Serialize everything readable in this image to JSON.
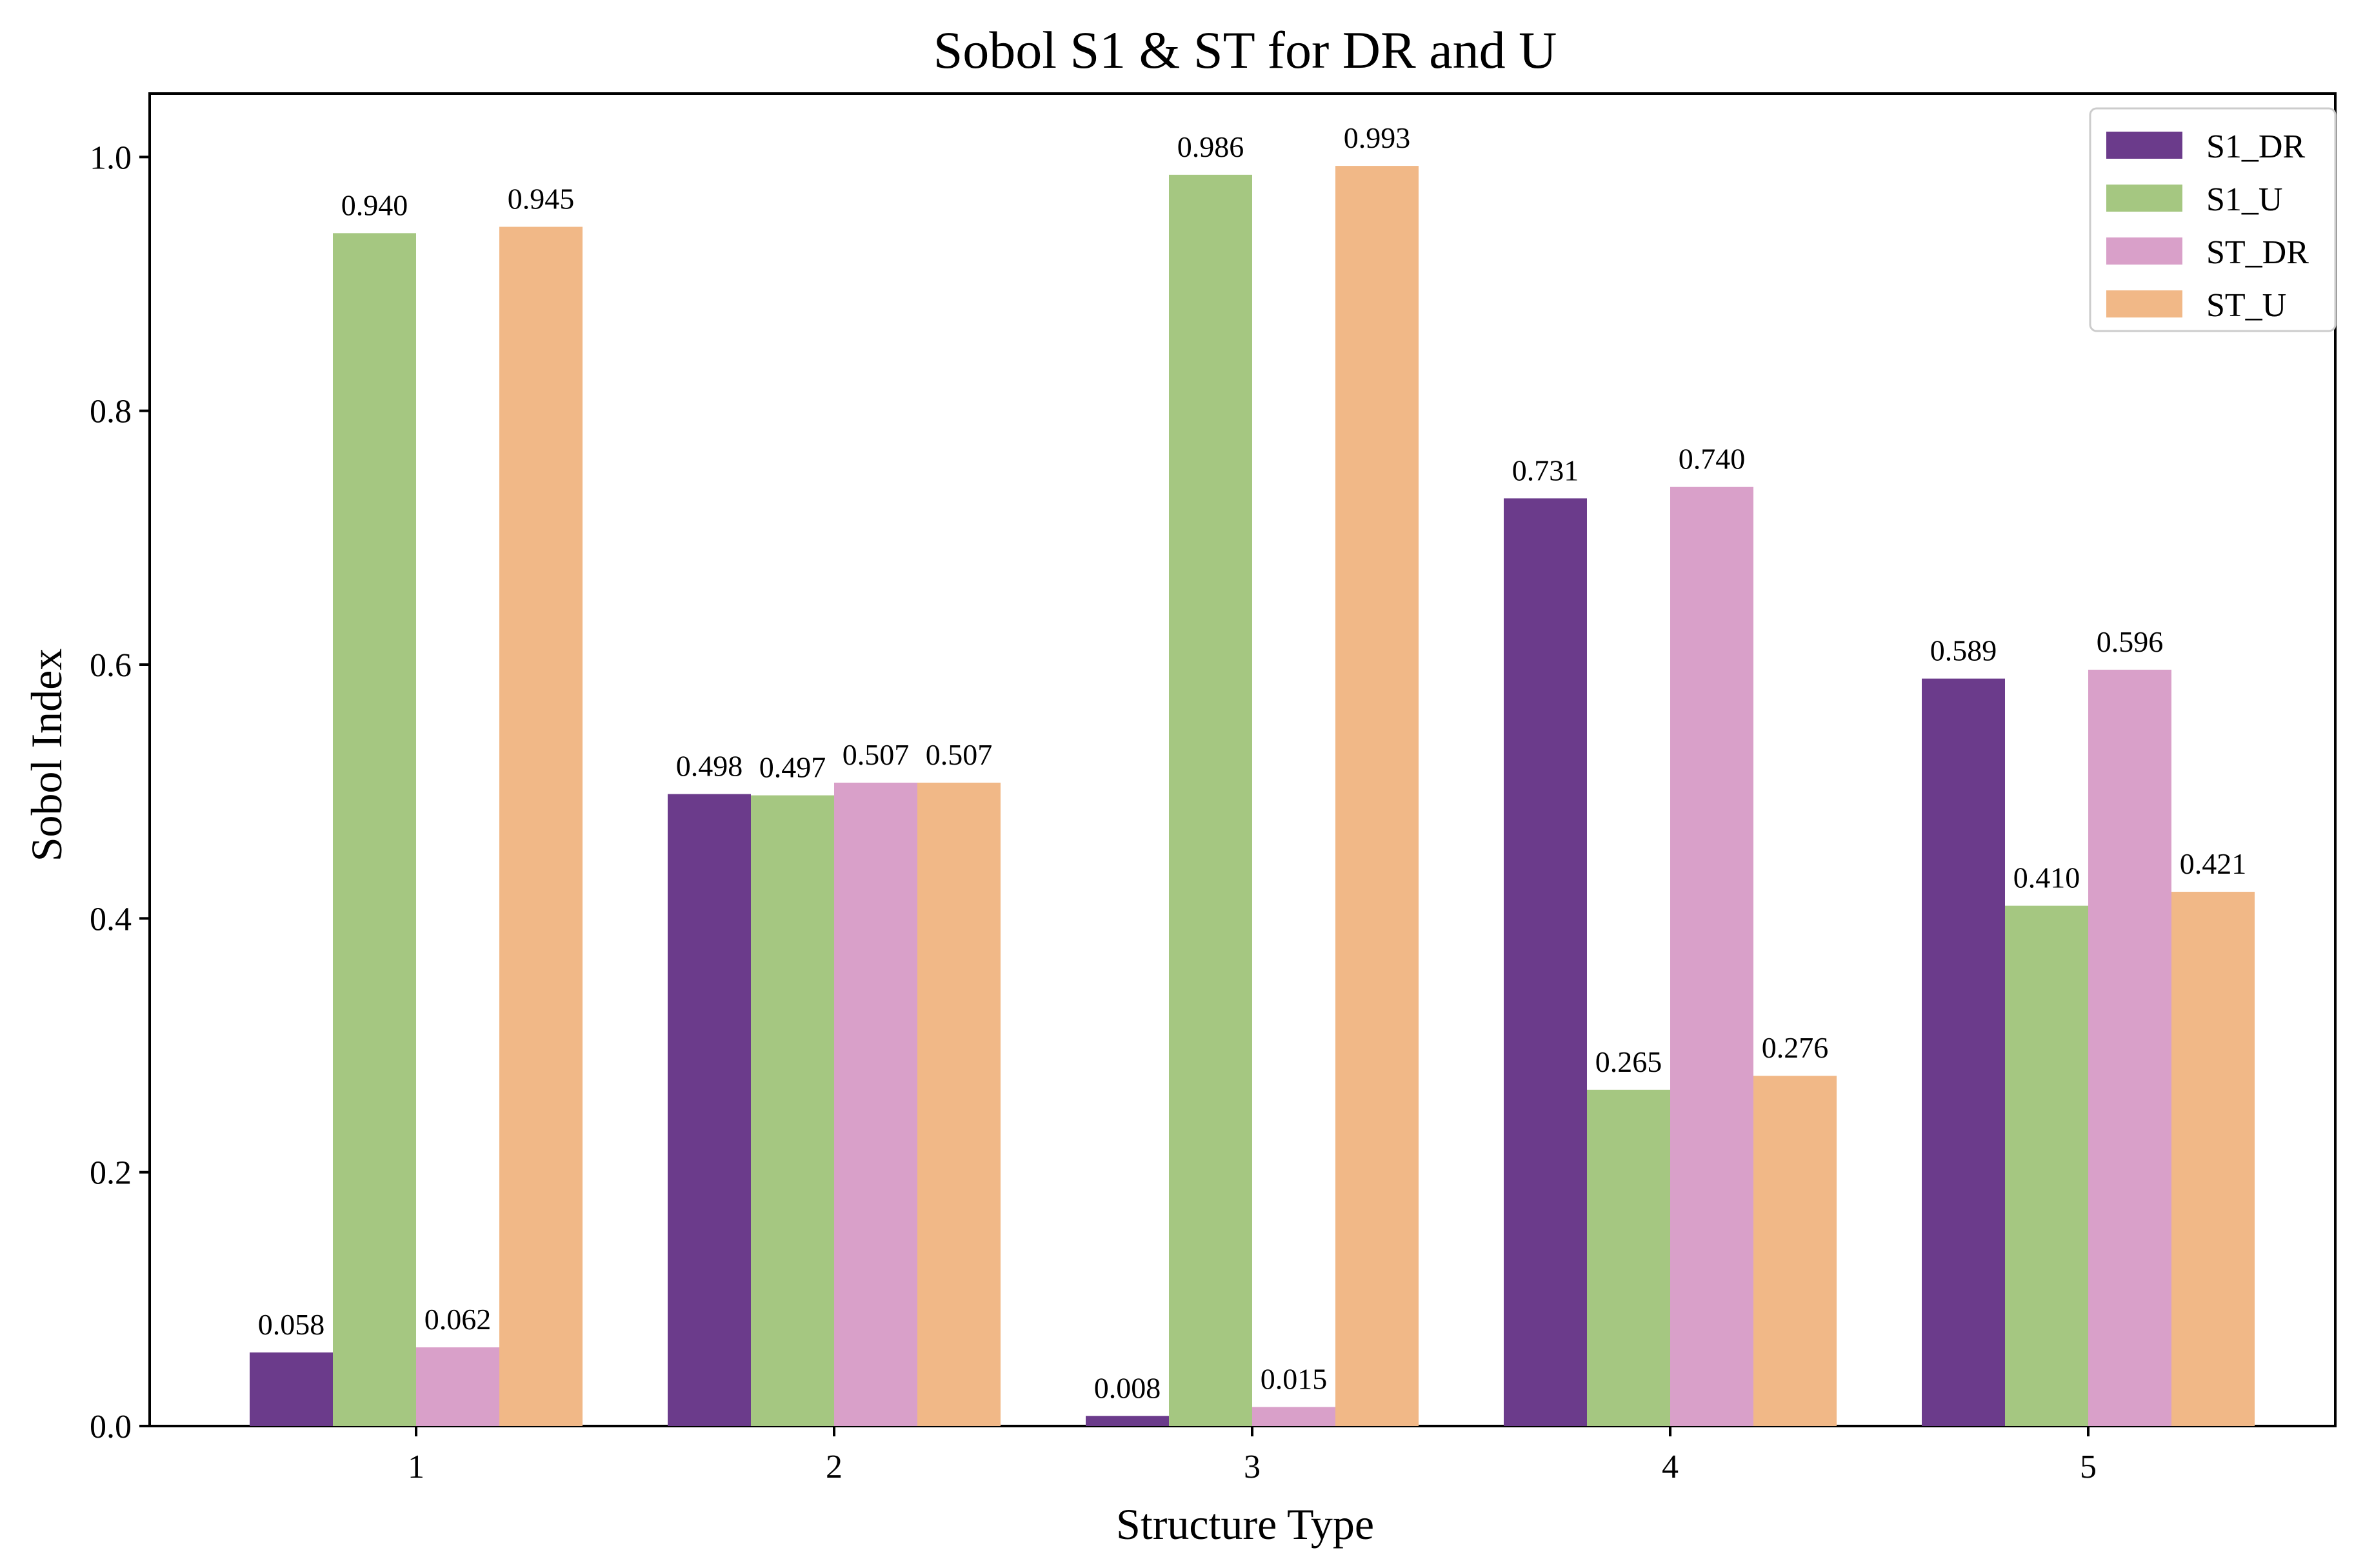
{
  "chart_data": {
    "type": "bar",
    "title": "Sobol S1 & ST for DR and U",
    "xlabel": "Structure Type",
    "ylabel": "Sobol Index",
    "categories": [
      "1",
      "2",
      "3",
      "4",
      "5"
    ],
    "ylim": [
      0,
      1.05
    ],
    "yticks": [
      0.0,
      0.2,
      0.4,
      0.6,
      0.8,
      1.0
    ],
    "ytick_labels": [
      "0.0",
      "0.2",
      "0.4",
      "0.6",
      "0.8",
      "1.0"
    ],
    "grid": false,
    "legend_position": "top-right",
    "series": [
      {
        "name": "S1_DR",
        "color": "#6b3b8b",
        "values": [
          0.058,
          0.498,
          0.008,
          0.731,
          0.589
        ],
        "labels": [
          "0.058",
          "0.498",
          "0.008",
          "0.731",
          "0.589"
        ]
      },
      {
        "name": "S1_U",
        "color": "#a5c781",
        "values": [
          0.94,
          0.497,
          0.986,
          0.265,
          0.41
        ],
        "labels": [
          "0.940",
          "0.497",
          "0.986",
          "0.265",
          "0.410"
        ]
      },
      {
        "name": "ST_DR",
        "color": "#d9a0c9",
        "values": [
          0.062,
          0.507,
          0.015,
          0.74,
          0.596
        ],
        "labels": [
          "0.062",
          "0.507",
          "0.015",
          "0.740",
          "0.596"
        ]
      },
      {
        "name": "ST_U",
        "color": "#f1b887",
        "values": [
          0.945,
          0.507,
          0.993,
          0.276,
          0.421
        ],
        "labels": [
          "0.945",
          "0.507",
          "0.993",
          "0.276",
          "0.421"
        ]
      }
    ]
  }
}
